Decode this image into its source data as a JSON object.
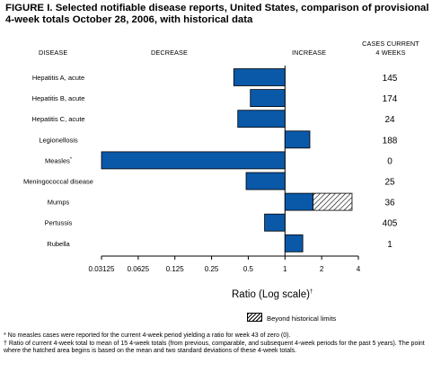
{
  "figure": {
    "title": "FIGURE I. Selected notifiable disease reports, United States, comparison of provisional 4-week totals October 28, 2006, with historical data",
    "col_disease": "DISEASE",
    "col_decrease": "DECREASE",
    "col_increase": "INCREASE",
    "col_cases_line1": "CASES CURRENT",
    "col_cases_line2": "4 WEEKS",
    "xaxis_label": "Ratio (Log scale)",
    "xaxis_label_mark": "†",
    "legend_label": "Beyond historical limits",
    "footnote_1": "* No measles cases were reported for the current 4-week period yielding a ratio for week 43 of zero (0).",
    "footnote_2": "† Ratio of current 4-week total to mean of 15 4-week totals (from previous, comparable, and subsequent 4-week periods for the past 5 years). The point where the hatched area begins is based on the mean and two standard deviations of these 4-week totals."
  },
  "chart_data": {
    "type": "bar",
    "orientation": "horizontal",
    "x_scale": "log2",
    "xlim": [
      0.03125,
      4
    ],
    "x_ticks": [
      "0.03125",
      "0.0625",
      "0.125",
      "0.25",
      "0.5",
      "1",
      "2",
      "4"
    ],
    "x_tick_values": [
      0.03125,
      0.0625,
      0.125,
      0.25,
      0.5,
      1,
      2,
      4
    ],
    "baseline": 1,
    "bar_color": "#0a58a8",
    "categories": [
      "Hepatitis A, acute",
      "Hepatitis B, acute",
      "Hepatitis C, acute",
      "Legionellosis",
      "Measles*",
      "Meningococcal disease",
      "Mumps",
      "Pertussis",
      "Rubella"
    ],
    "values": [
      0.38,
      0.52,
      0.41,
      1.6,
      0.03125,
      0.48,
      3.55,
      0.68,
      1.4
    ],
    "beyond_historical_limit_start": [
      null,
      null,
      null,
      null,
      null,
      null,
      1.7,
      null,
      null
    ],
    "cases_current_4_weeks": [
      "145",
      "174",
      "24",
      "188",
      "0",
      "25",
      "36",
      "405",
      "1"
    ]
  }
}
